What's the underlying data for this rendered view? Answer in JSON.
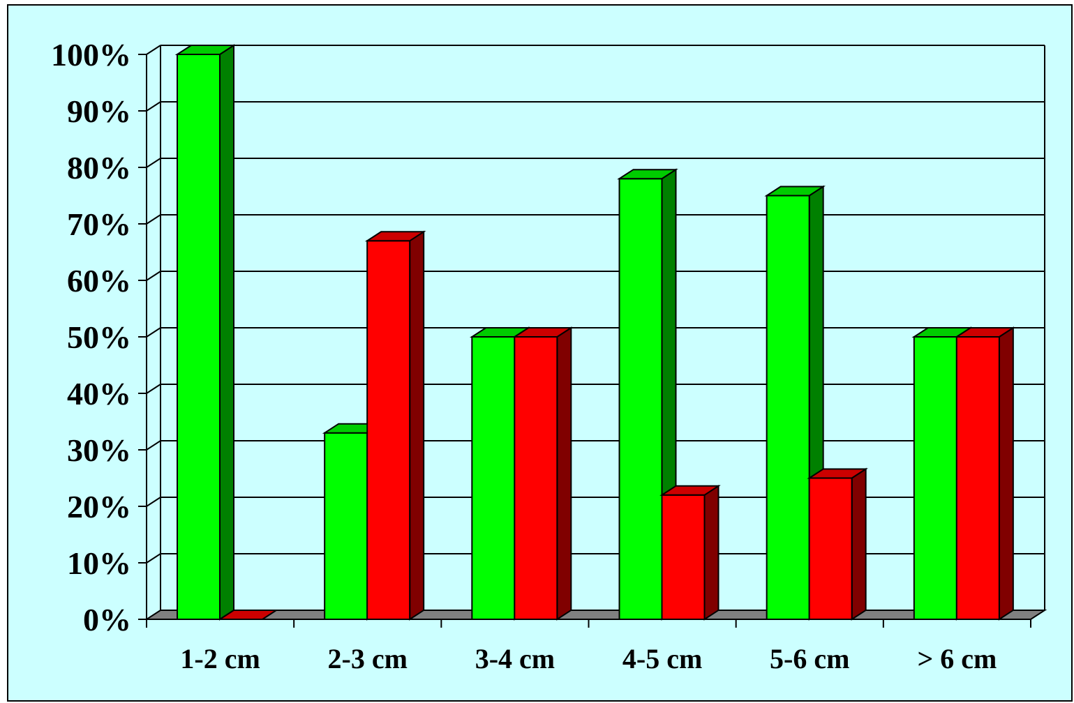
{
  "chart_data": {
    "type": "bar",
    "title": "",
    "xlabel": "",
    "ylabel": "",
    "categories": [
      "1-2 cm",
      "2-3 cm",
      "3-4 cm",
      "4-5 cm",
      "5-6 cm",
      "> 6 cm"
    ],
    "series": [
      {
        "values": [
          100,
          33,
          50,
          78,
          75,
          50
        ],
        "color": "#00ff00",
        "side_color": "#008000",
        "top_color": "#00cc00"
      },
      {
        "values": [
          0,
          67,
          50,
          22,
          25,
          50
        ],
        "color": "#ff0000",
        "side_color": "#800000",
        "top_color": "#cc0000"
      }
    ],
    "ylim": [
      0,
      100
    ],
    "y_ticks": [
      "0%",
      "10%",
      "20%",
      "30%",
      "40%",
      "50%",
      "60%",
      "70%",
      "80%",
      "90%",
      "100%"
    ],
    "grid": true,
    "legend": "none",
    "style": "3d-clustered-column",
    "background_color": "#ccffff",
    "floor_color": "#808080"
  }
}
